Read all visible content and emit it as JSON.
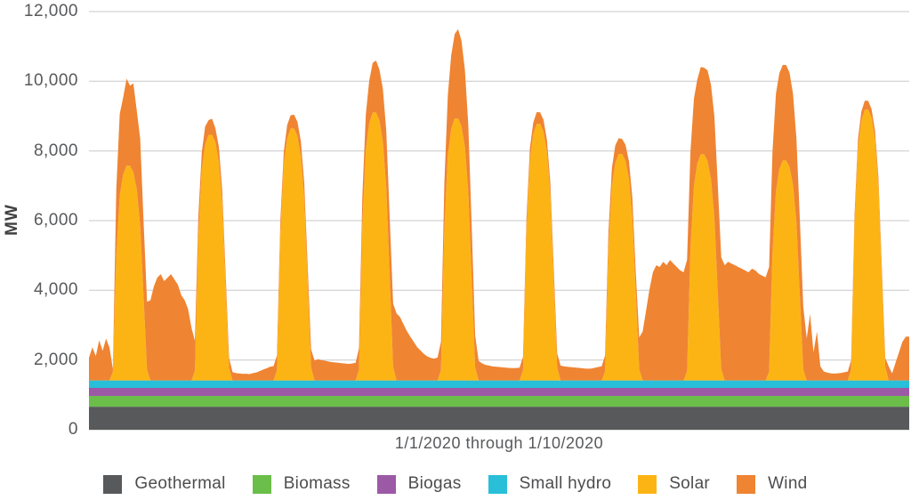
{
  "y_axis": {
    "label": "MW",
    "ticks": [
      "0",
      "2,000",
      "4,000",
      "6,000",
      "8,000",
      "10,000",
      "12,000"
    ],
    "tick_values": [
      0,
      2000,
      4000,
      6000,
      8000,
      10000,
      12000
    ]
  },
  "x_axis": {
    "label": "1/1/2020 through 1/10/2020",
    "start_date": "1/1/2020",
    "end_date": "1/10/2020",
    "days": 10
  },
  "legend": {
    "items": [
      {
        "key": "geothermal",
        "label": "Geothermal"
      },
      {
        "key": "biomass",
        "label": "Biomass"
      },
      {
        "key": "biogas",
        "label": "Biogas"
      },
      {
        "key": "small_hydro",
        "label": "Small hydro"
      },
      {
        "key": "solar",
        "label": "Solar"
      },
      {
        "key": "wind",
        "label": "Wind"
      }
    ]
  },
  "colors": {
    "geothermal": "#58595B",
    "biomass": "#6BBE4A",
    "biogas": "#9C59A6",
    "small_hydro": "#29BFD9",
    "solar": "#FCB415",
    "wind": "#EF8433",
    "grid": "#C9C9C9",
    "tick_text": "#58595B",
    "axis_text": "#414042"
  },
  "chart_data": {
    "type": "area",
    "stacked": true,
    "unit": "MW",
    "title": "",
    "xlabel": "1/1/2020 through 1/10/2020",
    "ylabel": "MW",
    "ylim": [
      0,
      12000
    ],
    "grid": true,
    "legend_position": "bottom",
    "x_description": "240 hourly samples, 10 days (1/1/2020 - 1/10/2020), 24 h per day",
    "hours_per_day": 24,
    "series_order": [
      "geothermal",
      "biomass",
      "biogas",
      "small_hydro",
      "solar",
      "wind"
    ],
    "base_series_mw": {
      "geothermal": 660,
      "biomass": 310,
      "biogas": 230,
      "small_hydro": 215
    },
    "solar": {
      "daily_peak_mw": [
        6160,
        7050,
        7230,
        7690,
        7520,
        7360,
        6500,
        6490,
        6310,
        7770
      ],
      "hourly_profile": [
        0,
        0,
        0,
        0,
        0,
        0,
        0,
        0.04,
        0.58,
        0.86,
        0.96,
        1,
        1,
        0.97,
        0.89,
        0.72,
        0.38,
        0.05,
        0,
        0,
        0,
        0,
        0,
        0
      ]
    },
    "wind_hourly_mw": [
      650,
      950,
      700,
      1150,
      850,
      1200,
      950,
      80,
      1900,
      2350,
      2200,
      2500,
      2300,
      2550,
      2250,
      2500,
      2150,
      1950,
      2300,
      2700,
      2950,
      3050,
      2850,
      2950,
      3050,
      2900,
      2750,
      2450,
      2300,
      2050,
      1500,
      850,
      600,
      480,
      520,
      420,
      460,
      400,
      430,
      380,
      340,
      290,
      240,
      210,
      200,
      185,
      190,
      180,
      210,
      230,
      270,
      310,
      350,
      390,
      410,
      430,
      370,
      350,
      390,
      380,
      395,
      410,
      430,
      460,
      490,
      530,
      570,
      610,
      585,
      565,
      545,
      525,
      515,
      505,
      495,
      485,
      475,
      485,
      505,
      610,
      820,
      1020,
      1220,
      1420,
      1490,
      1460,
      1520,
      1620,
      1720,
      1820,
      1920,
      1820,
      1620,
      1420,
      1260,
      1110,
      960,
      860,
      760,
      690,
      645,
      625,
      655,
      810,
      1320,
      1720,
      2120,
      2420,
      2560,
      2460,
      2210,
      1910,
      1510,
      910,
      560,
      490,
      445,
      425,
      405,
      395,
      385,
      375,
      365,
      358,
      352,
      357,
      367,
      385,
      345,
      325,
      335,
      340,
      332,
      342,
      352,
      362,
      385,
      405,
      425,
      405,
      392,
      382,
      372,
      362,
      352,
      342,
      337,
      342,
      362,
      385,
      405,
      455,
      480,
      505,
      505,
      455,
      430,
      455,
      505,
      555,
      605,
      905,
      1405,
      2005,
      2605,
      3105,
      3305,
      3255,
      3405,
      3305,
      3455,
      3355,
      3255,
      3155,
      3105,
      3205,
      2805,
      2505,
      2405,
      2505,
      2485,
      2605,
      2705,
      2905,
      3105,
      3205,
      3305,
      3405,
      3355,
      3305,
      3255,
      3205,
      3155,
      3105,
      3205,
      3155,
      3055,
      3005,
      2955,
      3005,
      2905,
      2805,
      2755,
      2745,
      2740,
      2705,
      2605,
      2405,
      2205,
      1805,
      1205,
      1905,
      805,
      1405,
      405,
      255,
      225,
      205,
      195,
      205,
      215,
      235,
      255,
      265,
      255,
      245,
      255,
      260,
      252,
      247,
      242,
      237,
      232,
      255,
      405,
      205,
      505,
      805,
      1105,
      1255
    ]
  }
}
